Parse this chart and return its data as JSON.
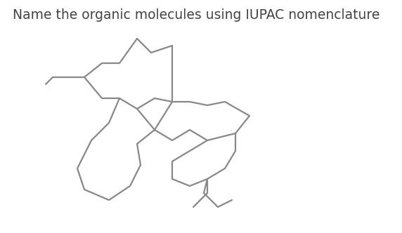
{
  "title": "Name the organic molecules using IUPAC nomenclature",
  "title_fontsize": 13.5,
  "title_color": "#444444",
  "bg_color": "#ffffff",
  "line_color": "#888888",
  "line_width": 1.6,
  "segments": [
    [
      [
        195,
        55
      ],
      [
        215,
        75
      ],
      [
        245,
        65
      ]
    ],
    [
      [
        195,
        55
      ],
      [
        170,
        90
      ],
      [
        145,
        90
      ],
      [
        120,
        110
      ],
      [
        145,
        140
      ],
      [
        170,
        140
      ],
      [
        195,
        155
      ],
      [
        220,
        140
      ],
      [
        245,
        145
      ],
      [
        245,
        65
      ]
    ],
    [
      [
        120,
        110
      ],
      [
        75,
        110
      ]
    ],
    [
      [
        65,
        120
      ],
      [
        75,
        110
      ]
    ],
    [
      [
        170,
        140
      ],
      [
        155,
        175
      ],
      [
        130,
        200
      ]
    ],
    [
      [
        130,
        200
      ],
      [
        110,
        240
      ],
      [
        120,
        270
      ],
      [
        155,
        285
      ],
      [
        185,
        265
      ],
      [
        200,
        235
      ]
    ],
    [
      [
        200,
        235
      ],
      [
        195,
        205
      ],
      [
        220,
        185
      ],
      [
        195,
        155
      ]
    ],
    [
      [
        220,
        185
      ],
      [
        245,
        145
      ]
    ],
    [
      [
        220,
        185
      ],
      [
        245,
        200
      ],
      [
        270,
        185
      ],
      [
        295,
        200
      ],
      [
        335,
        190
      ],
      [
        355,
        165
      ],
      [
        320,
        145
      ],
      [
        295,
        150
      ],
      [
        270,
        145
      ],
      [
        245,
        145
      ]
    ],
    [
      [
        295,
        200
      ],
      [
        270,
        215
      ],
      [
        245,
        230
      ],
      [
        245,
        255
      ],
      [
        270,
        265
      ],
      [
        295,
        255
      ],
      [
        320,
        240
      ],
      [
        335,
        215
      ],
      [
        335,
        190
      ]
    ],
    [
      [
        295,
        255
      ],
      [
        290,
        275
      ],
      [
        310,
        295
      ],
      [
        330,
        285
      ]
    ],
    [
      [
        295,
        255
      ],
      [
        295,
        275
      ],
      [
        275,
        295
      ]
    ]
  ]
}
